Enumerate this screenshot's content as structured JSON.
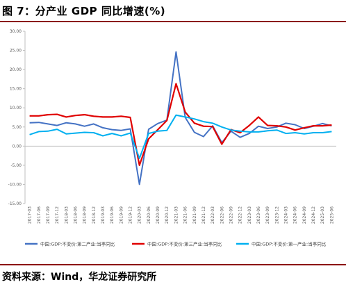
{
  "header": {
    "title": "图 7：分产业 GDP 同比增速(%)"
  },
  "footer": {
    "source": "资料来源：Wind，华龙证券研究所"
  },
  "chart_data": {
    "type": "line",
    "title": "",
    "xlabel": "",
    "ylabel": "",
    "ylim": [
      -15,
      30
    ],
    "yticks": [
      "30.00",
      "25.00",
      "20.00",
      "15.00",
      "10.00",
      "5.00",
      "0.00",
      "-5.00",
      "-10.00",
      "-15.00"
    ],
    "ytick_values": [
      30,
      25,
      20,
      15,
      10,
      5,
      0,
      -5,
      -10,
      -15
    ],
    "grid": false,
    "legend_position": "bottom",
    "categories": [
      "2017-03",
      "2017-06",
      "2017-09",
      "2017-12",
      "2018-03",
      "2018-06",
      "2018-09",
      "2018-12",
      "2019-03",
      "2019-06",
      "2019-09",
      "2019-12",
      "2020-03",
      "2020-06",
      "2020-09",
      "2020-12",
      "2021-03",
      "2021-06",
      "2021-09",
      "2021-12",
      "2022-03",
      "2022-06",
      "2022-09",
      "2022-12",
      "2023-03",
      "2023-06",
      "2023-09",
      "2023-12",
      "2024-03",
      "2024-06",
      "2024-09",
      "2024-12",
      "2025-03",
      "2025-06"
    ],
    "series": [
      {
        "name": "中国:GDP:不变价:第二产业:当季同比",
        "color": "#4472c4",
        "values": [
          6.1,
          6.2,
          5.8,
          5.4,
          6.1,
          5.8,
          5.2,
          5.8,
          4.8,
          4.3,
          4.1,
          4.5,
          -10.0,
          4.4,
          5.9,
          6.8,
          24.6,
          7.5,
          3.6,
          2.5,
          5.3,
          0.9,
          3.9,
          2.3,
          3.3,
          5.2,
          4.6,
          5.0,
          6.0,
          5.6,
          4.6,
          5.2,
          5.9,
          5.3
        ]
      },
      {
        "name": "中国:GDP:不变价:第三产业:当季同比",
        "color": "#e00000",
        "values": [
          7.9,
          7.9,
          8.2,
          8.3,
          7.6,
          8.0,
          8.2,
          7.8,
          7.6,
          7.6,
          7.8,
          7.5,
          -5.0,
          1.9,
          4.3,
          6.7,
          16.3,
          8.9,
          6.0,
          5.2,
          5.1,
          0.5,
          4.3,
          3.5,
          5.4,
          7.6,
          5.4,
          5.3,
          5.0,
          4.2,
          4.8,
          5.3,
          5.3,
          5.5
        ]
      },
      {
        "name": "中国:GDP:不变价:第一产业:当季同比",
        "color": "#00b0f0",
        "values": [
          3.0,
          3.8,
          3.9,
          4.4,
          3.2,
          3.4,
          3.6,
          3.5,
          2.7,
          3.3,
          2.7,
          3.4,
          -3.2,
          3.3,
          3.9,
          4.1,
          8.1,
          7.6,
          7.1,
          6.4,
          6.0,
          5.0,
          4.2,
          3.9,
          3.7,
          3.7,
          4.0,
          4.2,
          3.3,
          3.5,
          3.2,
          3.5,
          3.5,
          3.8
        ]
      }
    ]
  }
}
